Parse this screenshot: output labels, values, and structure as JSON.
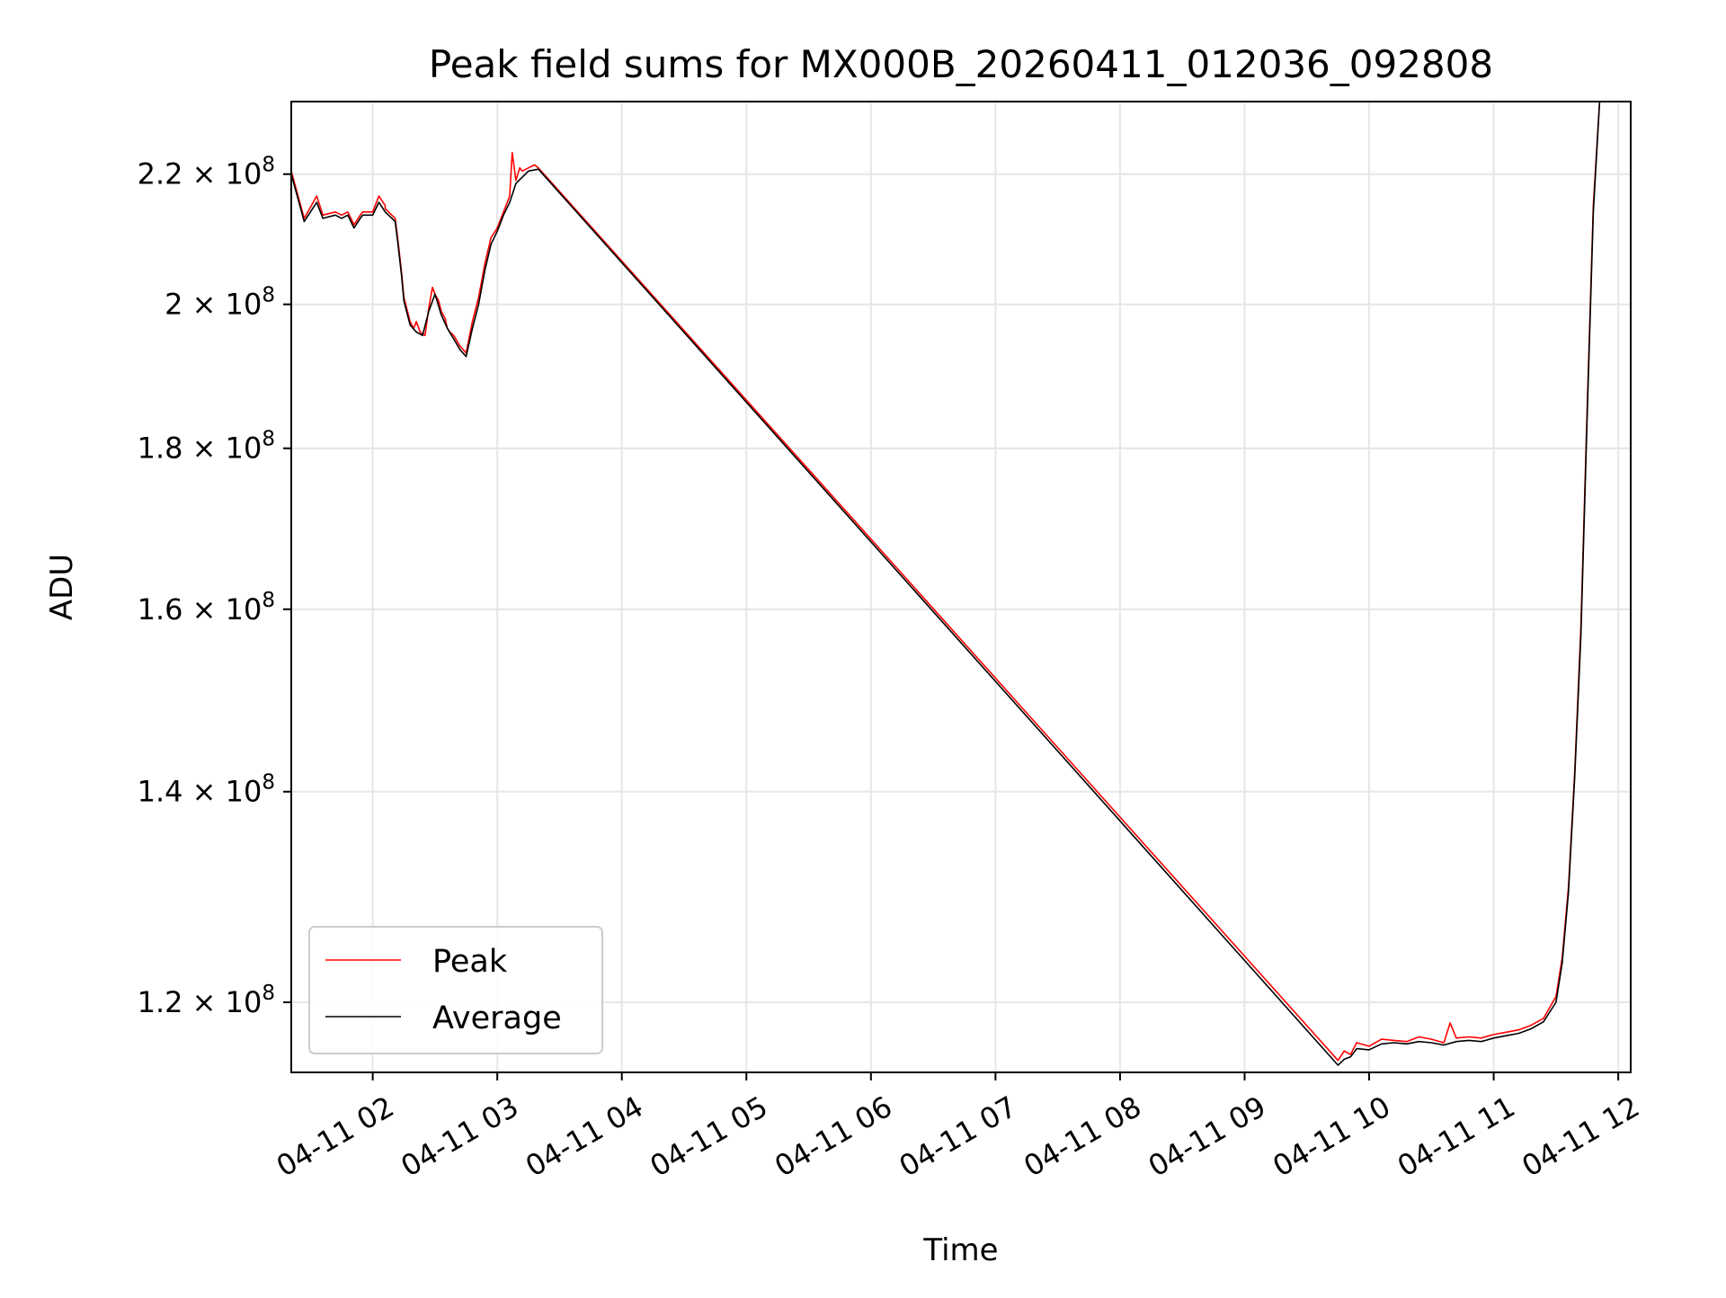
{
  "chart_data": {
    "type": "line",
    "title": "Peak field sums for MX000B_20260411_012036_092808",
    "xlabel": "Time",
    "ylabel": "ADU",
    "yscale": "log",
    "ylim": [
      114000000,
      232000000
    ],
    "xlim_hours": [
      1.346,
      12.1
    ],
    "grid": true,
    "legend_position": "lower-left",
    "x_ticks": [
      {
        "hour": 2,
        "label": "04-11 02"
      },
      {
        "hour": 3,
        "label": "04-11 03"
      },
      {
        "hour": 4,
        "label": "04-11 04"
      },
      {
        "hour": 5,
        "label": "04-11 05"
      },
      {
        "hour": 6,
        "label": "04-11 06"
      },
      {
        "hour": 7,
        "label": "04-11 07"
      },
      {
        "hour": 8,
        "label": "04-11 08"
      },
      {
        "hour": 9,
        "label": "04-11 09"
      },
      {
        "hour": 10,
        "label": "04-11 10"
      },
      {
        "hour": 11,
        "label": "04-11 11"
      },
      {
        "hour": 12,
        "label": "04-11 12"
      }
    ],
    "y_ticks": [
      {
        "value": 120000000,
        "mantissa": "1.2",
        "exponent": "8"
      },
      {
        "value": 140000000,
        "mantissa": "1.4",
        "exponent": "8"
      },
      {
        "value": 160000000,
        "mantissa": "1.6",
        "exponent": "8"
      },
      {
        "value": 180000000,
        "mantissa": "1.8",
        "exponent": "8"
      },
      {
        "value": 200000000,
        "mantissa": "2",
        "exponent": "8"
      },
      {
        "value": 220000000,
        "mantissa": "2.2",
        "exponent": "8"
      }
    ],
    "series": [
      {
        "name": "Peak",
        "color": "#ff0000",
        "x_hours": [
          1.346,
          1.45,
          1.55,
          1.6,
          1.7,
          1.75,
          1.8,
          1.85,
          1.9,
          1.92,
          2.0,
          2.05,
          2.1,
          2.1,
          2.18,
          2.2,
          2.23,
          2.25,
          2.3,
          2.33,
          2.35,
          2.38,
          2.42,
          2.45,
          2.48,
          2.5,
          2.53,
          2.55,
          2.58,
          2.6,
          2.62,
          2.65,
          2.7,
          2.75,
          2.8,
          2.85,
          2.9,
          2.95,
          3.0,
          3.05,
          3.1,
          3.12,
          3.15,
          3.18,
          3.2,
          3.25,
          3.3,
          3.33,
          9.75,
          9.8,
          9.85,
          9.9,
          10.0,
          10.1,
          10.2,
          10.3,
          10.4,
          10.5,
          10.6,
          10.65,
          10.7,
          10.8,
          10.9,
          11.0,
          11.1,
          11.2,
          11.3,
          11.4,
          11.5,
          11.55,
          11.6,
          11.65,
          11.7,
          11.75,
          11.8,
          11.85,
          11.9
        ],
        "y": [
          220500000,
          213000000,
          216500000,
          213500000,
          214000000,
          213500000,
          214000000,
          212000000,
          213500000,
          214000000,
          214000000,
          216500000,
          215000000,
          214500000,
          213000000,
          210000000,
          205000000,
          201000000,
          197500000,
          196500000,
          197500000,
          196000000,
          195500000,
          199500000,
          202500000,
          201500000,
          200500000,
          199000000,
          198000000,
          196500000,
          196000000,
          195500000,
          194000000,
          193000000,
          197500000,
          201000000,
          206000000,
          210000000,
          211500000,
          214000000,
          216500000,
          223500000,
          219000000,
          221000000,
          220500000,
          221000000,
          221500000,
          221000000,
          115000000,
          115800000,
          115500000,
          116500000,
          116200000,
          116800000,
          116700000,
          116600000,
          117000000,
          116800000,
          116500000,
          118200000,
          116900000,
          117000000,
          116900000,
          117200000,
          117400000,
          117600000,
          118000000,
          118600000,
          120500000,
          124000000,
          130500000,
          142000000,
          158000000,
          185000000,
          215000000,
          232000000,
          232000000
        ]
      },
      {
        "name": "Average",
        "color": "#000000",
        "x_hours": [
          1.346,
          1.45,
          1.55,
          1.6,
          1.7,
          1.75,
          1.8,
          1.85,
          1.9,
          1.92,
          2.0,
          2.05,
          2.1,
          2.18,
          2.2,
          2.23,
          2.25,
          2.3,
          2.35,
          2.4,
          2.45,
          2.5,
          2.55,
          2.6,
          2.65,
          2.7,
          2.75,
          2.8,
          2.85,
          2.9,
          2.95,
          3.0,
          3.05,
          3.1,
          3.15,
          3.2,
          3.25,
          3.33,
          9.75,
          9.8,
          9.85,
          9.9,
          10.0,
          10.1,
          10.2,
          10.3,
          10.4,
          10.5,
          10.6,
          10.7,
          10.8,
          10.9,
          11.0,
          11.1,
          11.2,
          11.3,
          11.4,
          11.5,
          11.55,
          11.6,
          11.65,
          11.7,
          11.75,
          11.8,
          11.85,
          11.9
        ],
        "y": [
          220000000,
          212500000,
          215500000,
          213000000,
          213500000,
          213000000,
          213500000,
          211500000,
          213000000,
          213500000,
          213500000,
          215500000,
          214000000,
          212500000,
          209500000,
          204500000,
          200500000,
          197000000,
          196000000,
          195500000,
          199000000,
          201500000,
          198500000,
          196500000,
          195000000,
          193500000,
          192500000,
          196500000,
          200000000,
          205000000,
          209000000,
          211000000,
          213500000,
          215500000,
          218500000,
          219500000,
          220500000,
          220800000,
          114600000,
          115100000,
          115300000,
          116000000,
          115900000,
          116400000,
          116500000,
          116400000,
          116600000,
          116500000,
          116300000,
          116600000,
          116700000,
          116600000,
          116900000,
          117100000,
          117300000,
          117700000,
          118300000,
          120000000,
          123500000,
          130000000,
          141500000,
          157000000,
          184000000,
          214000000,
          232000000,
          232000000
        ]
      }
    ]
  }
}
